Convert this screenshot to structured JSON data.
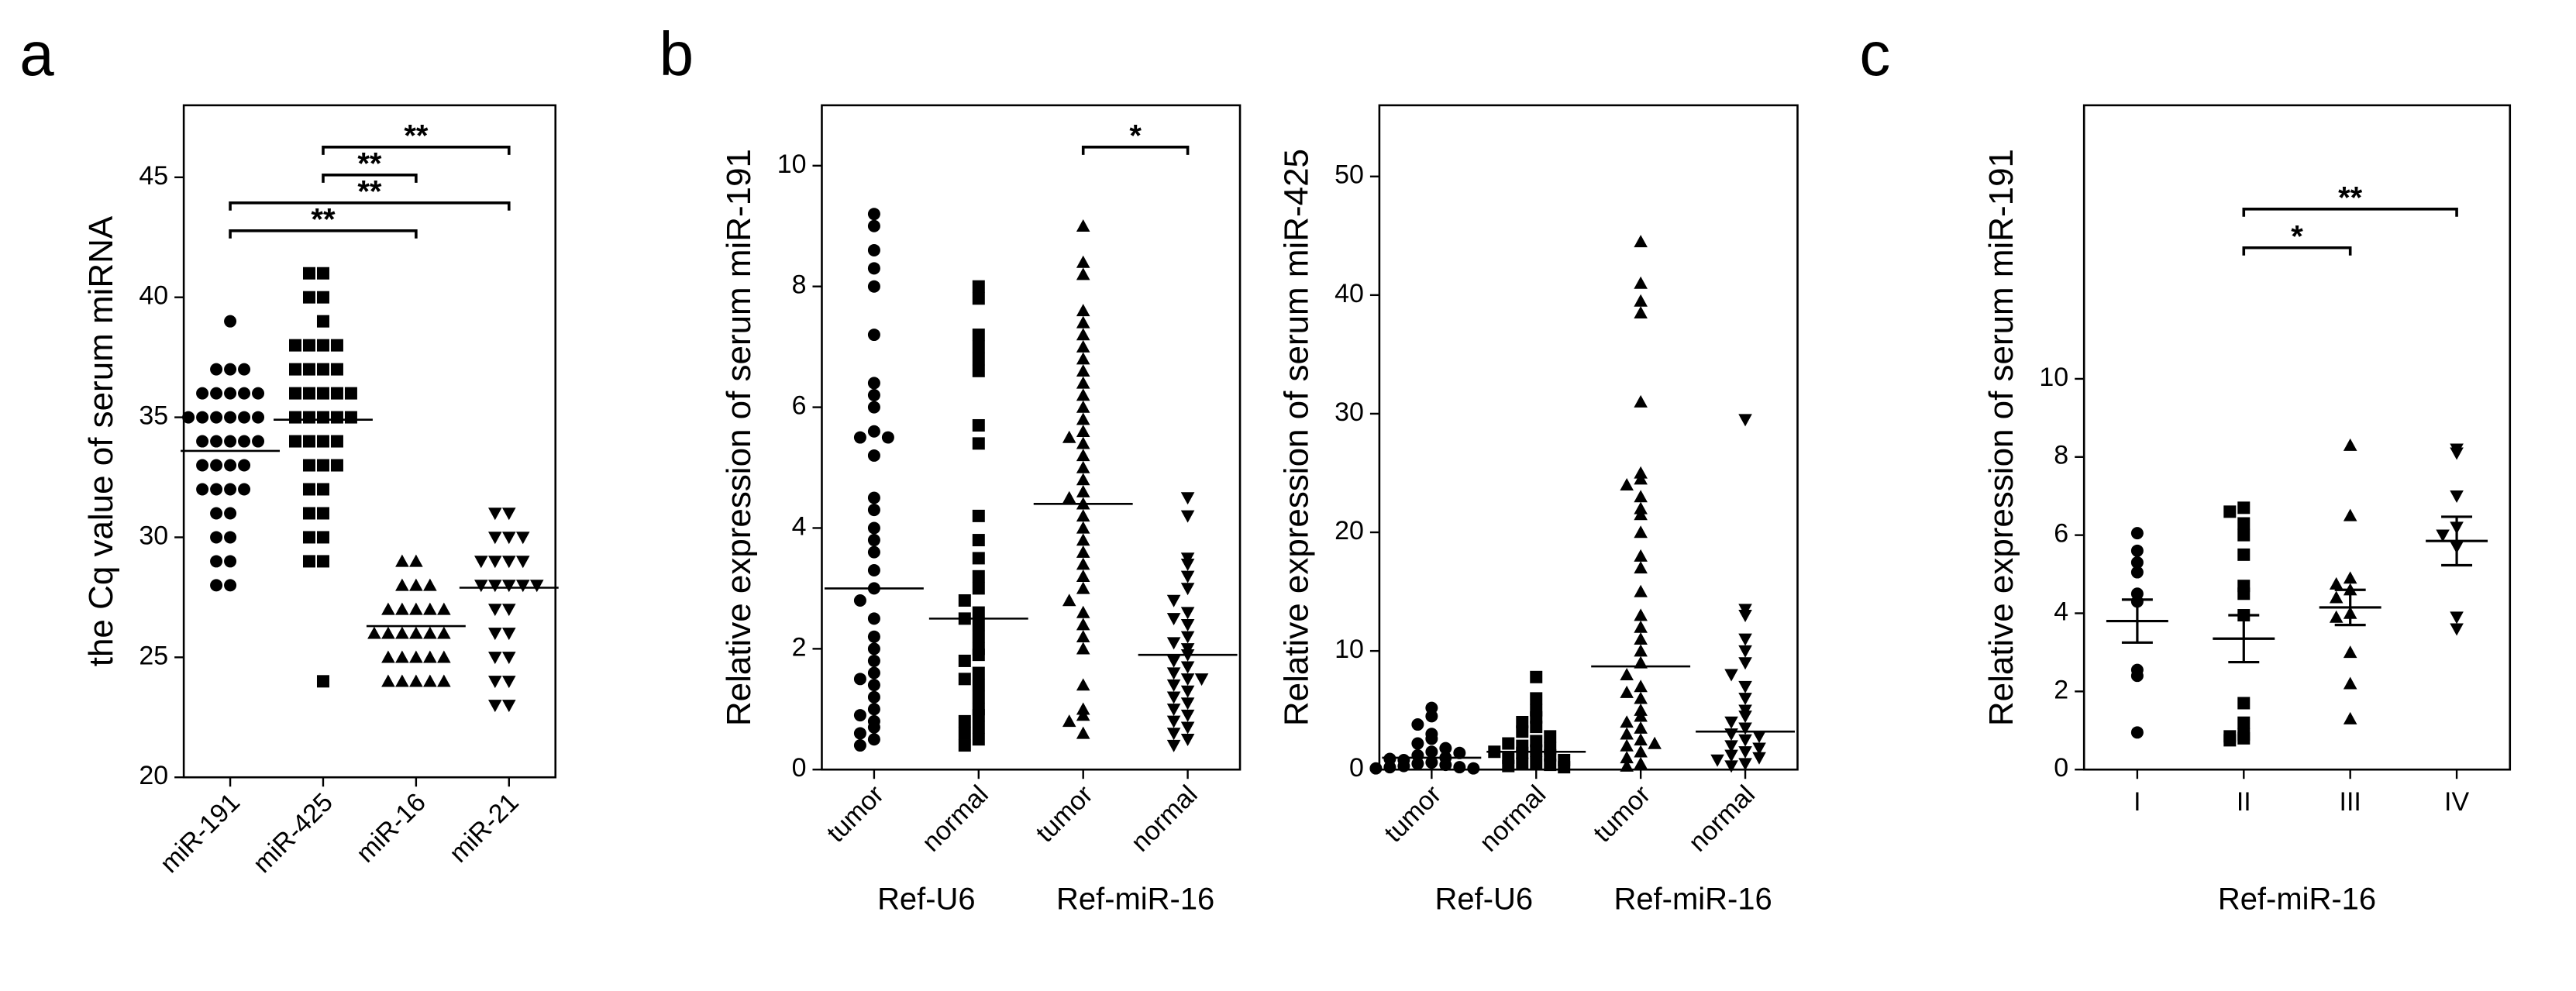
{
  "chart_data": [
    {
      "type": "dot",
      "panel": "a",
      "ylabel": "the Cq value of serum miRNA",
      "categories": [
        "miR-191",
        "miR-425",
        "miR-16",
        "miR-21"
      ],
      "rotate_labels": true,
      "markers": [
        "circle",
        "square",
        "triangle",
        "triangle-down"
      ],
      "color": "#000000",
      "values": [
        [
          39,
          37,
          37,
          37,
          36,
          36,
          36,
          36,
          35,
          35,
          35,
          35,
          35,
          34,
          34,
          34,
          34,
          33,
          33,
          33,
          32,
          32,
          32,
          31,
          31,
          30,
          30,
          29,
          29,
          28,
          28,
          36,
          35,
          34,
          33,
          32
        ],
        [
          41,
          41,
          40,
          40,
          39,
          38,
          38,
          38,
          38,
          37,
          37,
          37,
          37,
          36,
          36,
          36,
          36,
          36,
          35,
          35,
          35,
          35,
          35,
          34,
          34,
          34,
          34,
          33,
          33,
          33,
          32,
          32,
          31,
          31,
          30,
          30,
          29,
          29,
          24
        ],
        [
          29,
          29,
          28,
          28,
          28,
          27,
          27,
          27,
          27,
          27,
          26,
          26,
          26,
          26,
          26,
          26,
          25,
          25,
          25,
          25,
          25,
          24,
          24,
          24,
          24,
          24
        ],
        [
          31,
          31,
          30,
          30,
          30,
          29,
          29,
          29,
          29,
          28,
          28,
          28,
          28,
          28,
          27,
          27,
          26,
          26,
          25,
          25,
          24,
          24,
          23,
          23
        ]
      ],
      "means": [
        33.6,
        34.9,
        26.3,
        27.9
      ],
      "ylim": [
        20,
        48
      ],
      "yticks": [
        20,
        25,
        30,
        35,
        40,
        45
      ],
      "brackets": [
        {
          "between": [
            "miR-425",
            "miR-21"
          ],
          "label": "**"
        },
        {
          "between": [
            "miR-425",
            "miR-16"
          ],
          "label": "**"
        },
        {
          "between": [
            "miR-191",
            "miR-21"
          ],
          "label": "**"
        },
        {
          "between": [
            "miR-191",
            "miR-16"
          ],
          "label": "**"
        }
      ]
    },
    {
      "type": "dot",
      "panel": "b",
      "ylabel": "Relative expression of serum miR-191",
      "categories": [
        "tumor",
        "normal",
        "tumor",
        "normal"
      ],
      "rotate_labels": true,
      "groups": [
        "Ref-U6",
        "Ref-miR-16"
      ],
      "markers": [
        "circle",
        "square",
        "triangle",
        "triangle-down"
      ],
      "color": "#000000",
      "values": [
        [
          9.2,
          9.0,
          8.6,
          8.3,
          8.0,
          7.2,
          6.4,
          6.2,
          6.0,
          5.6,
          5.5,
          5.2,
          4.5,
          4.3,
          4.0,
          3.6,
          3.3,
          3.0,
          2.8,
          2.5,
          2.2,
          2.0,
          1.8,
          1.6,
          1.4,
          1.2,
          1.0,
          0.8,
          0.7,
          0.6,
          0.5,
          0.4,
          5.5,
          3.8,
          1.5,
          0.9
        ],
        [
          8.0,
          7.8,
          7.2,
          7.0,
          6.8,
          6.6,
          5.7,
          5.4,
          4.2,
          3.8,
          3.5,
          3.2,
          3.0,
          2.8,
          2.6,
          2.4,
          2.2,
          2.0,
          1.9,
          1.8,
          1.6,
          1.4,
          1.2,
          1.0,
          0.9,
          0.8,
          0.7,
          0.6,
          0.5,
          0.4,
          2.5,
          1.5
        ],
        [
          9.0,
          8.4,
          8.2,
          7.6,
          7.4,
          7.2,
          7.0,
          6.8,
          6.6,
          6.4,
          6.2,
          6.0,
          5.8,
          5.6,
          5.4,
          5.2,
          5.0,
          4.8,
          4.6,
          4.4,
          4.2,
          4.0,
          3.8,
          3.6,
          3.4,
          3.2,
          3.0,
          2.8,
          2.6,
          2.4,
          2.2,
          2.0,
          1.4,
          1.0,
          0.9,
          0.8,
          0.6,
          5.5,
          4.5
        ],
        [
          4.5,
          4.2,
          3.5,
          3.4,
          3.2,
          3.0,
          2.8,
          2.6,
          2.4,
          2.2,
          2.0,
          1.9,
          1.8,
          1.7,
          1.6,
          1.5,
          1.4,
          1.3,
          1.2,
          1.1,
          1.0,
          0.9,
          0.8,
          0.7,
          0.6,
          0.5,
          0.4,
          2.5,
          2.1,
          1.5
        ]
      ],
      "means": [
        3.0,
        2.5,
        4.4,
        1.9
      ],
      "ylim": [
        0,
        11
      ],
      "yticks": [
        0,
        2,
        4,
        6,
        8,
        10
      ],
      "brackets": [
        {
          "between": [
            2,
            3
          ],
          "label": "*"
        }
      ]
    },
    {
      "type": "dot",
      "ylabel": "Relative expression of serum miR-425",
      "categories": [
        "tumor",
        "normal",
        "tumor",
        "normal"
      ],
      "rotate_labels": true,
      "groups": [
        "Ref-U6",
        "Ref-miR-16"
      ],
      "markers": [
        "circle",
        "square",
        "triangle",
        "triangle-down"
      ],
      "color": "#000000",
      "values": [
        [
          5.2,
          4.5,
          3.8,
          3.0,
          2.6,
          2.2,
          1.8,
          1.5,
          1.2,
          1.0,
          0.8,
          0.6,
          0.5,
          0.4,
          0.3,
          0.2,
          0.2,
          0.1,
          0.1,
          1.4,
          0.9
        ],
        [
          7.8,
          6.0,
          5.0,
          4.4,
          4.0,
          3.6,
          3.2,
          2.8,
          2.4,
          2.0,
          1.8,
          1.6,
          1.4,
          1.2,
          1.0,
          0.8,
          0.6,
          0.5,
          0.4,
          0.3,
          0.2,
          2.2,
          1.5
        ],
        [
          44.5,
          41,
          39.5,
          38.5,
          31,
          25,
          24.5,
          24,
          23,
          22,
          21.5,
          20,
          18,
          17,
          15,
          13,
          12,
          11,
          10,
          9,
          8,
          7,
          6,
          5,
          4.5,
          4,
          3.5,
          3,
          2.5,
          2,
          1.5,
          1,
          0.5,
          0.3,
          6.5,
          2.2
        ],
        [
          29.5,
          13.5,
          13,
          11,
          10,
          9,
          8,
          7,
          6,
          5,
          4.5,
          4,
          3.5,
          3,
          2.5,
          2,
          1.5,
          1.2,
          1,
          0.8,
          0.5,
          0.3,
          2.8,
          1.8
        ]
      ],
      "means": [
        1.0,
        1.5,
        8.7,
        3.2
      ],
      "ylim": [
        0,
        56
      ],
      "yticks": [
        0,
        10,
        20,
        30,
        40,
        50
      ]
    },
    {
      "type": "dot",
      "panel": "c",
      "ylabel": "Relative expression of serum miR-191",
      "xlabel": "Ref-miR-16",
      "categories": [
        "I",
        "II",
        "III",
        "IV"
      ],
      "rotate_labels": false,
      "markers": [
        "circle",
        "square",
        "triangle",
        "triangle-down"
      ],
      "color": "#000000",
      "values": [
        [
          6.05,
          5.6,
          5.3,
          5.05,
          4.5,
          4.3,
          2.55,
          2.4,
          0.95
        ],
        [
          6.7,
          6.6,
          6.3,
          6.0,
          5.5,
          4.7,
          4.5,
          3.95,
          1.7,
          1.2,
          0.9,
          0.8,
          0.85,
          0.75
        ],
        [
          8.3,
          6.5,
          4.9,
          4.75,
          4.6,
          4.4,
          4.0,
          3.9,
          3.0,
          2.2,
          1.3
        ],
        [
          8.2,
          8.1,
          7.0,
          6.2,
          6.0,
          5.7,
          3.9,
          3.6
        ]
      ],
      "means": [
        3.8,
        3.35,
        4.15,
        5.85
      ],
      "errors": [
        0.55,
        0.6,
        0.45,
        0.62
      ],
      "ylim": [
        0,
        17
      ],
      "yticks": [
        0,
        2,
        4,
        6,
        8,
        10
      ],
      "brackets": [
        {
          "between": [
            "II",
            "IV"
          ],
          "label": "**"
        },
        {
          "between": [
            "II",
            "III"
          ],
          "label": "*"
        }
      ]
    }
  ]
}
